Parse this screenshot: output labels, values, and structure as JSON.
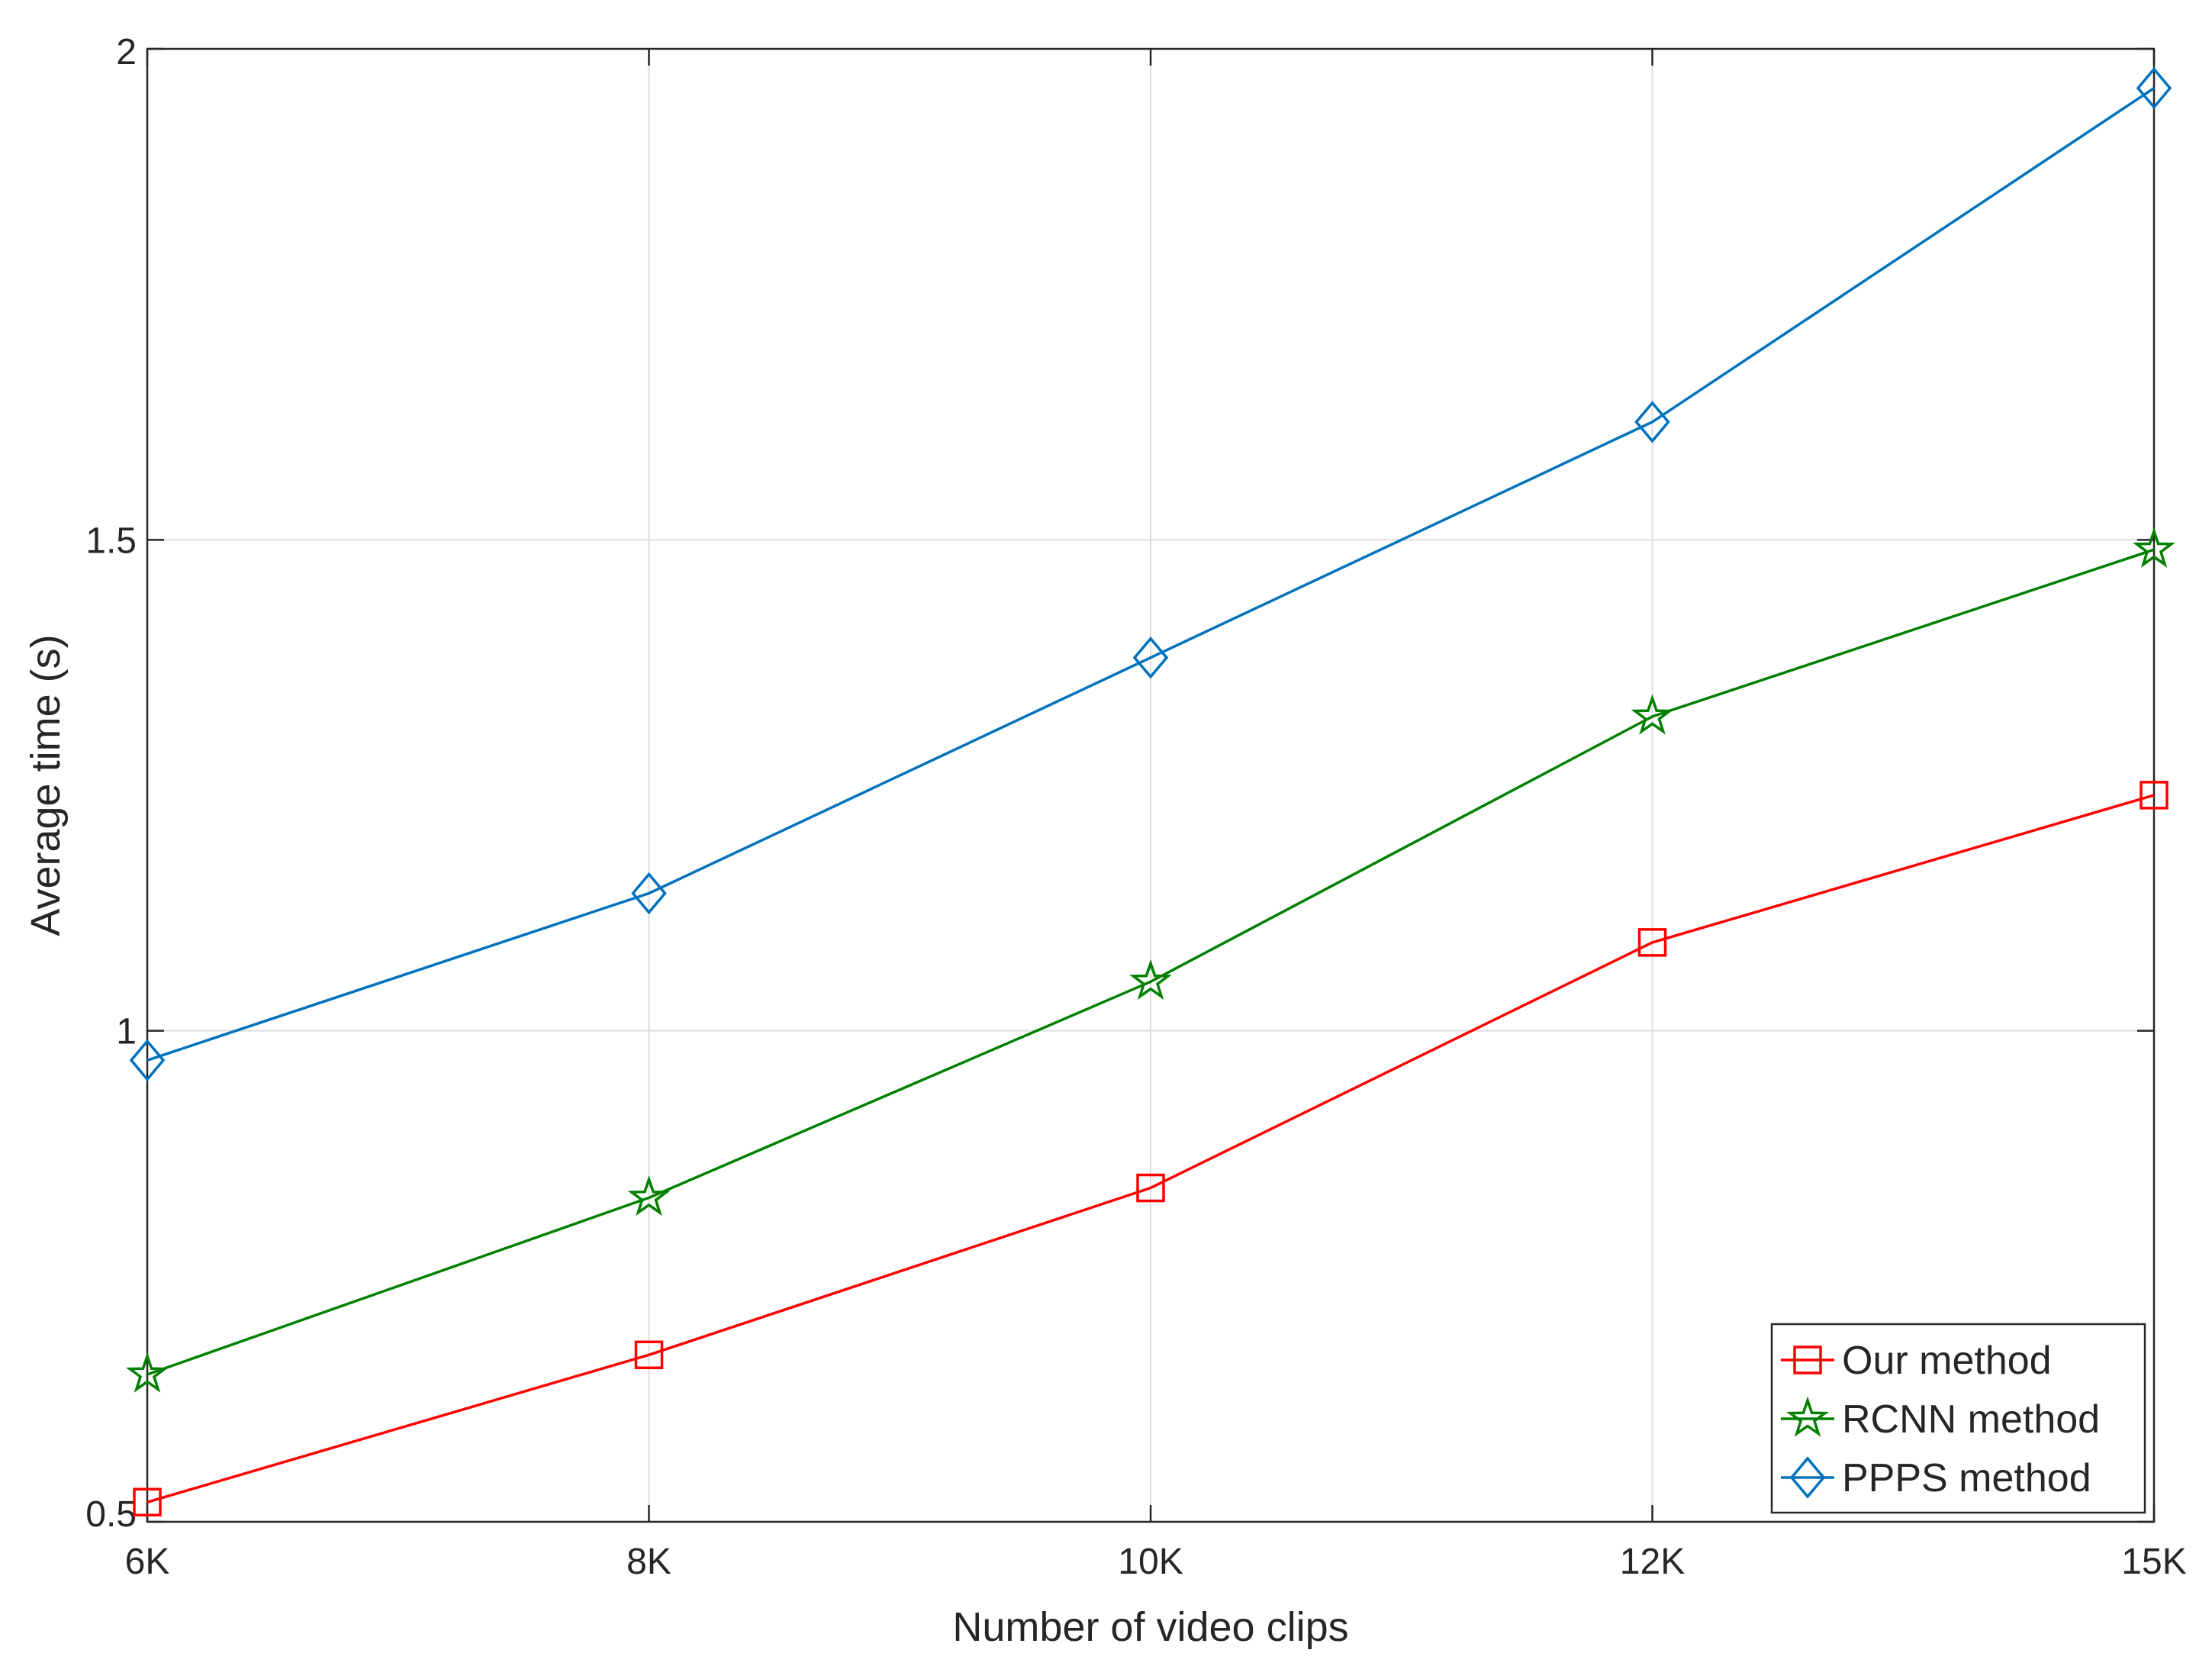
{
  "chart_data": {
    "type": "line",
    "title": "",
    "xlabel": "Number of video clips",
    "ylabel": "Average time (s)",
    "categories": [
      "6K",
      "8K",
      "10K",
      "12K",
      "15K"
    ],
    "ylim": [
      0.5,
      2
    ],
    "yticks": [
      "0.5",
      "1",
      "1.5",
      "2"
    ],
    "ytick_values": [
      0.5,
      1,
      1.5,
      2
    ],
    "grid": true,
    "legend_position": "bottom-right",
    "series": [
      {
        "name": "Our method",
        "values": [
          0.52,
          0.67,
          0.84,
          1.09,
          1.24
        ],
        "color": "#ff0000",
        "marker": "square"
      },
      {
        "name": "RCNN method",
        "values": [
          0.65,
          0.83,
          1.05,
          1.32,
          1.49
        ],
        "color": "#008000",
        "marker": "star"
      },
      {
        "name": "PPPS method",
        "values": [
          0.97,
          1.14,
          1.38,
          1.62,
          1.96
        ],
        "color": "#0072bd",
        "marker": "diamond"
      }
    ]
  }
}
